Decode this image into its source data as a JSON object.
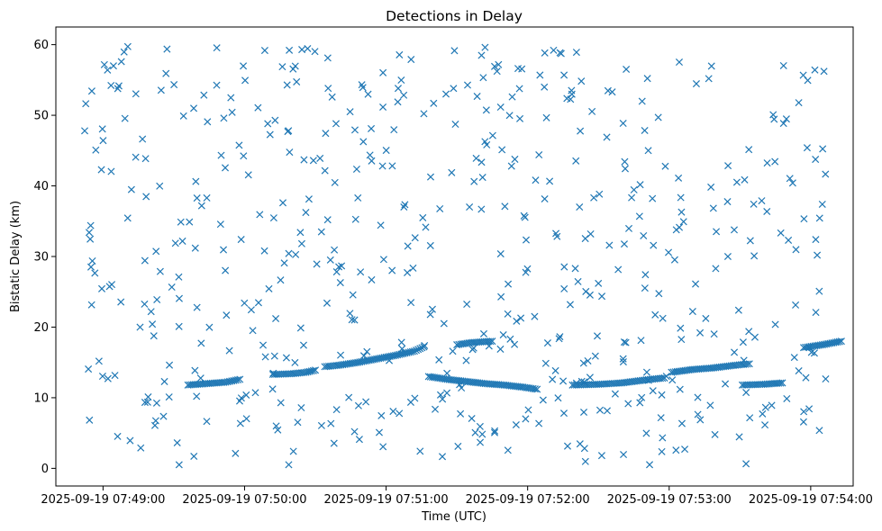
{
  "chart_data": {
    "type": "scatter",
    "title": "Detections in Delay",
    "xlabel": "Time (UTC)",
    "ylabel": "Bistatic Delay (km)",
    "marker": "x",
    "color": "#1f77b4",
    "grid": false,
    "xlim_seconds": [
      -20,
      318
    ],
    "ylim": [
      -2.5,
      62.5
    ],
    "x_ticks": [
      {
        "t": 0,
        "label": "2025-09-19 07:49:00"
      },
      {
        "t": 60,
        "label": "2025-09-19 07:50:00"
      },
      {
        "t": 120,
        "label": "2025-09-19 07:51:00"
      },
      {
        "t": 180,
        "label": "2025-09-19 07:52:00"
      },
      {
        "t": 240,
        "label": "2025-09-19 07:53:00"
      },
      {
        "t": 300,
        "label": "2025-09-19 07:54:00"
      }
    ],
    "y_ticks": [
      0,
      10,
      20,
      30,
      40,
      50,
      60
    ],
    "track_segments": [
      {
        "t": [
          36,
          44,
          52,
          58
        ],
        "y": [
          11.8,
          12.0,
          12.2,
          12.6
        ]
      },
      {
        "t": [
          72,
          80,
          86,
          90
        ],
        "y": [
          13.3,
          13.4,
          13.6,
          13.9
        ]
      },
      {
        "t": [
          94,
          100,
          108,
          116,
          124,
          132,
          136
        ],
        "y": [
          14.4,
          14.6,
          15.0,
          15.5,
          16.0,
          16.6,
          17.2
        ]
      },
      {
        "t": [
          150,
          156,
          160,
          165
        ],
        "y": [
          17.5,
          17.8,
          17.9,
          18.0
        ]
      },
      {
        "t": [
          138,
          146,
          154,
          162,
          170,
          178,
          184
        ],
        "y": [
          13.0,
          12.6,
          12.3,
          12.0,
          11.8,
          11.5,
          11.2
        ]
      },
      {
        "t": [
          199,
          210,
          220,
          232,
          238
        ],
        "y": [
          11.8,
          11.9,
          12.1,
          12.6,
          12.8
        ]
      },
      {
        "t": [
          241,
          250,
          258,
          268,
          274
        ],
        "y": [
          13.6,
          14.0,
          14.2,
          14.6,
          14.8
        ]
      },
      {
        "t": [
          271,
          280,
          288
        ],
        "y": [
          11.8,
          11.9,
          12.1
        ]
      },
      {
        "t": [
          297,
          305,
          313
        ],
        "y": [
          17.1,
          17.5,
          18.0
        ]
      }
    ],
    "noise_seed": 20250919,
    "noise_count": 560
  }
}
